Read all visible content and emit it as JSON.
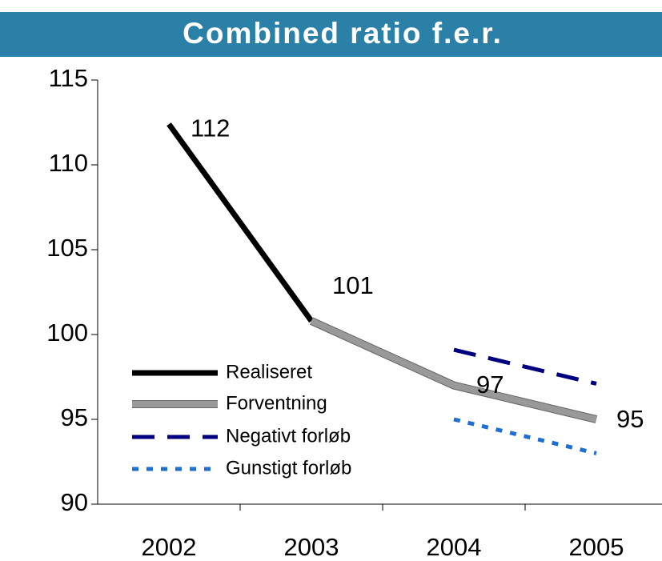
{
  "chart_data": {
    "type": "line",
    "title": "Combined ratio f.e.r.",
    "categories": [
      "2002",
      "2003",
      "2004",
      "2005"
    ],
    "series": [
      {
        "name": "Realiseret",
        "color": "#000000",
        "values": [
          112.4,
          100.8,
          null,
          null
        ],
        "value_labels": [
          "112",
          "101",
          null,
          null
        ]
      },
      {
        "name": "Forventning",
        "color": "#999999",
        "values": [
          null,
          100.8,
          97,
          95
        ],
        "value_labels": [
          null,
          null,
          "97",
          "95"
        ]
      },
      {
        "name": "Negativt forløb",
        "color": "#000080",
        "values": [
          null,
          null,
          99.1,
          97.1
        ]
      },
      {
        "name": "Gunstigt forløb",
        "color": "#1f6fd0",
        "values": [
          null,
          null,
          95,
          93
        ]
      }
    ],
    "ylim": [
      90,
      115
    ],
    "yticks": [
      90,
      95,
      100,
      105,
      110,
      115
    ]
  }
}
